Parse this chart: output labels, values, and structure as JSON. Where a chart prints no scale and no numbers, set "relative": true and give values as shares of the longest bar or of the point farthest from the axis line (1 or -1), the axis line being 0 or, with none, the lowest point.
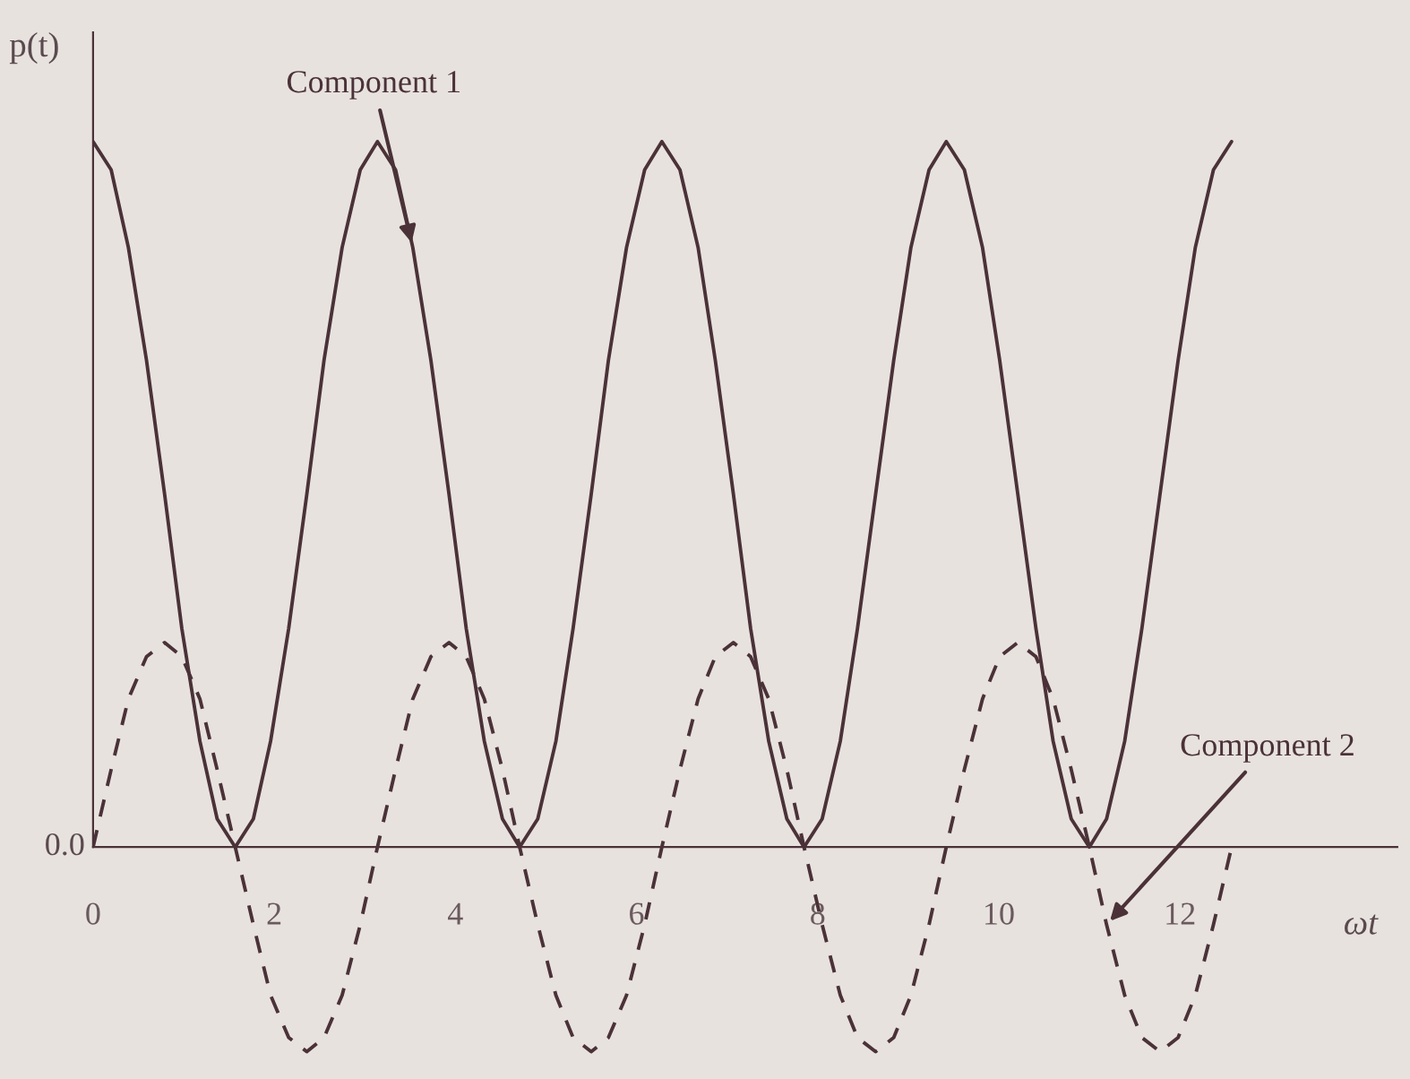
{
  "chart_data": {
    "type": "line",
    "relative": true,
    "xlabel": "ωt",
    "ylabel": "p(t)",
    "x": [
      0,
      0.2,
      0.39,
      0.59,
      0.79,
      0.98,
      1.18,
      1.37,
      1.57,
      1.77,
      1.96,
      2.16,
      2.36,
      2.55,
      2.75,
      2.95,
      3.14,
      3.34,
      3.53,
      3.73,
      3.93,
      4.12,
      4.32,
      4.52,
      4.71,
      4.91,
      5.11,
      5.3,
      5.5,
      5.69,
      5.89,
      6.09,
      6.28,
      6.48,
      6.68,
      6.87,
      7.07,
      7.26,
      7.46,
      7.66,
      7.85,
      8.05,
      8.25,
      8.44,
      8.64,
      8.84,
      9.03,
      9.23,
      9.42,
      9.62,
      9.82,
      10.01,
      10.21,
      10.41,
      10.6,
      10.8,
      11.0,
      11.19,
      11.39,
      11.58,
      11.78,
      11.98,
      12.17,
      12.37,
      12.57
    ],
    "xlim": [
      0,
      14.4
    ],
    "xticks": [
      0,
      2,
      4,
      6,
      8,
      10,
      12
    ],
    "series": [
      {
        "name": "Component 1",
        "color": "#4a3238",
        "line_style": "solid",
        "values": [
          1,
          0.96,
          0.85,
          0.69,
          0.5,
          0.31,
          0.15,
          0.04,
          0,
          0.04,
          0.15,
          0.31,
          0.5,
          0.69,
          0.85,
          0.96,
          1,
          0.96,
          0.85,
          0.69,
          0.5,
          0.31,
          0.15,
          0.04,
          0,
          0.04,
          0.15,
          0.31,
          0.5,
          0.69,
          0.85,
          0.96,
          1,
          0.96,
          0.85,
          0.69,
          0.5,
          0.31,
          0.15,
          0.04,
          0,
          0.04,
          0.15,
          0.31,
          0.5,
          0.69,
          0.85,
          0.96,
          1,
          0.96,
          0.85,
          0.69,
          0.5,
          0.31,
          0.15,
          0.04,
          0,
          0.04,
          0.15,
          0.31,
          0.5,
          0.69,
          0.85,
          0.96,
          1
        ]
      },
      {
        "name": "Component 2",
        "color": "#4a3238",
        "line_style": "dashed",
        "values": [
          0,
          0.11,
          0.21,
          0.27,
          0.29,
          0.27,
          0.21,
          0.11,
          0,
          -0.11,
          -0.21,
          -0.27,
          -0.29,
          -0.27,
          -0.21,
          -0.11,
          0,
          0.11,
          0.21,
          0.27,
          0.29,
          0.27,
          0.21,
          0.11,
          0,
          -0.11,
          -0.21,
          -0.27,
          -0.29,
          -0.27,
          -0.21,
          -0.11,
          0,
          0.11,
          0.21,
          0.27,
          0.29,
          0.27,
          0.21,
          0.11,
          0,
          -0.11,
          -0.21,
          -0.27,
          -0.29,
          -0.27,
          -0.21,
          -0.11,
          0,
          0.11,
          0.21,
          0.27,
          0.29,
          0.27,
          0.21,
          0.11,
          0,
          -0.11,
          -0.21,
          -0.27,
          -0.29,
          -0.27,
          -0.21,
          -0.11,
          0
        ]
      }
    ],
    "annotations": [
      "0.0"
    ],
    "legend": false,
    "grid": false,
    "marker": "none"
  }
}
